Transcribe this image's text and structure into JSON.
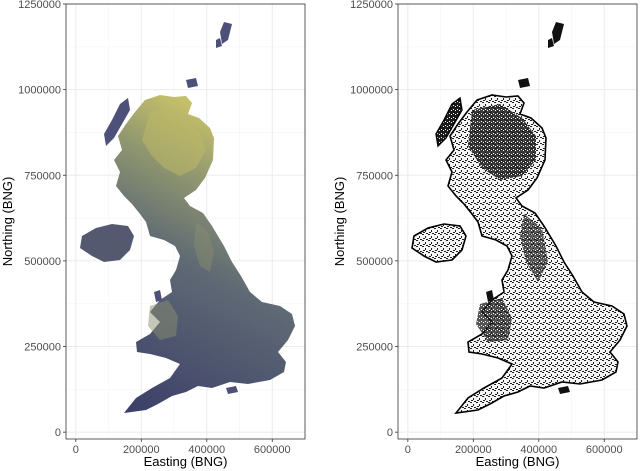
{
  "panels": [
    {
      "id": "elevation",
      "xlabel": "Easting (BNG)",
      "ylabel": "Northing (BNG)",
      "xticks": [
        "0",
        "200000",
        "400000",
        "600000"
      ],
      "yticks": [
        "0",
        "250000",
        "500000",
        "750000",
        "1000000",
        "1250000"
      ],
      "fill_low": "#3b3f6b",
      "fill_high": "#c9c46a",
      "outline": "none"
    },
    {
      "id": "landcover-binary",
      "xlabel": "Easting (BNG)",
      "ylabel": "Northing (BNG)",
      "xticks": [
        "0",
        "200000",
        "400000",
        "600000"
      ],
      "yticks": [
        "0",
        "250000",
        "500000",
        "750000",
        "1000000",
        "1250000"
      ],
      "fill_low": "#ffffff",
      "fill_high": "#111111",
      "outline": "#000000"
    }
  ],
  "axis_ranges": {
    "x": [
      -30000,
      700000
    ],
    "y": [
      -20000,
      1250000
    ]
  },
  "colors": {
    "panel_background": "#ffffff",
    "grid_major": "#ebebeb",
    "grid_minor": "#f5f5f5",
    "panel_border": "#333333"
  }
}
